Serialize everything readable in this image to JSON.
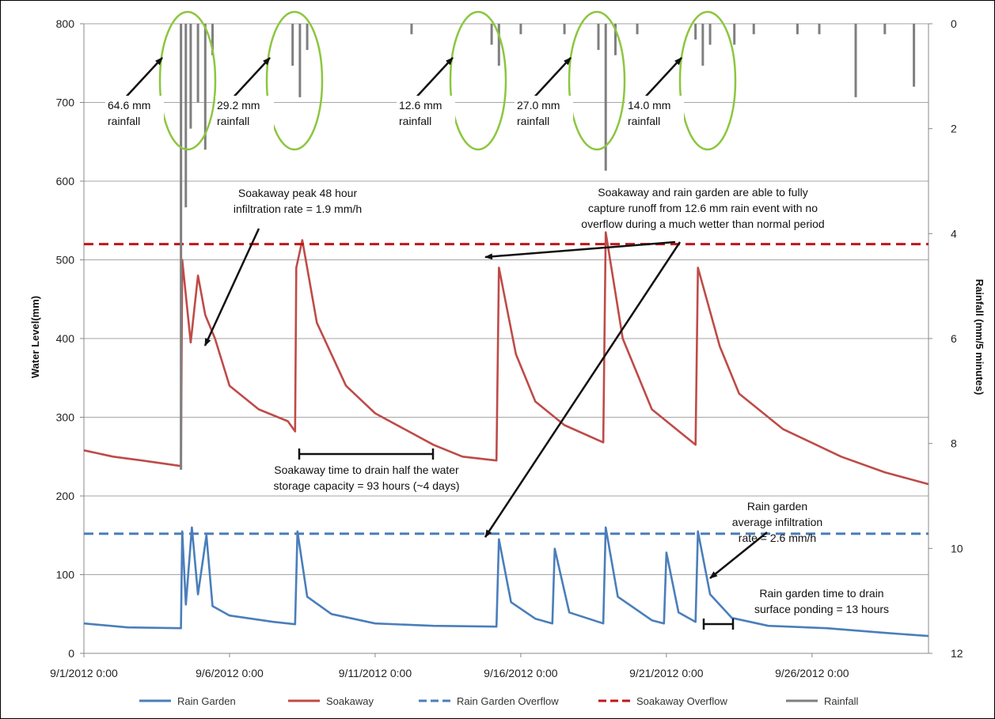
{
  "chart_data": {
    "type": "line",
    "ylabel": "Water Level(mm)",
    "y2label": "Rainfall  (mm/5 minutes)",
    "ylim": [
      0,
      800
    ],
    "y2lim": [
      12,
      0
    ],
    "xlim": [
      "2012-09-01",
      "2012-09-30"
    ],
    "yticks": [
      "0",
      "100",
      "200",
      "300",
      "400",
      "500",
      "600",
      "700",
      "800"
    ],
    "y2ticks": [
      "0",
      "2",
      "4",
      "6",
      "8",
      "10",
      "12"
    ],
    "xticks": [
      "9/1/2012 0:00",
      "9/6/2012 0:00",
      "9/11/2012 0:00",
      "9/16/2012 0:00",
      "9/21/2012 0:00",
      "9/26/2012 0:00"
    ],
    "grid": true,
    "legend_position": "bottom",
    "series": [
      {
        "name": "Rain Garden",
        "color": "#4a7ebb",
        "style": "solid",
        "points": [
          [
            "2012-09-01 00:00",
            38
          ],
          [
            "2012-09-02 12:00",
            33
          ],
          [
            "2012-09-04 08:00",
            32
          ],
          [
            "2012-09-04 09:00",
            155
          ],
          [
            "2012-09-04 12:00",
            62
          ],
          [
            "2012-09-04 17:00",
            160
          ],
          [
            "2012-09-04 22:00",
            75
          ],
          [
            "2012-09-05 05:00",
            150
          ],
          [
            "2012-09-05 10:00",
            60
          ],
          [
            "2012-09-06 00:00",
            48
          ],
          [
            "2012-09-07 12:00",
            40
          ],
          [
            "2012-09-08 06:00",
            37
          ],
          [
            "2012-09-08 08:00",
            155
          ],
          [
            "2012-09-08 16:00",
            72
          ],
          [
            "2012-09-09 12:00",
            50
          ],
          [
            "2012-09-11 00:00",
            38
          ],
          [
            "2012-09-13 00:00",
            35
          ],
          [
            "2012-09-15 04:00",
            34
          ],
          [
            "2012-09-15 06:00",
            145
          ],
          [
            "2012-09-15 16:00",
            65
          ],
          [
            "2012-09-16 12:00",
            44
          ],
          [
            "2012-09-17 02:00",
            38
          ],
          [
            "2012-09-17 04:00",
            133
          ],
          [
            "2012-09-17 16:00",
            52
          ],
          [
            "2012-09-18 20:00",
            38
          ],
          [
            "2012-09-18 22:00",
            160
          ],
          [
            "2012-09-19 08:00",
            72
          ],
          [
            "2012-09-20 12:00",
            42
          ],
          [
            "2012-09-20 22:00",
            38
          ],
          [
            "2012-09-21 00:00",
            128
          ],
          [
            "2012-09-21 10:00",
            52
          ],
          [
            "2012-09-22 00:00",
            40
          ],
          [
            "2012-09-22 02:00",
            155
          ],
          [
            "2012-09-22 12:00",
            75
          ],
          [
            "2012-09-23 06:00",
            45
          ],
          [
            "2012-09-24 12:00",
            35
          ],
          [
            "2012-09-26 12:00",
            32
          ],
          [
            "2012-09-28 12:00",
            26
          ],
          [
            "2012-09-30 00:00",
            22
          ]
        ]
      },
      {
        "name": "Soakaway",
        "color": "#be4b48",
        "style": "solid",
        "points": [
          [
            "2012-09-01 00:00",
            258
          ],
          [
            "2012-09-02 00:00",
            250
          ],
          [
            "2012-09-03 00:00",
            245
          ],
          [
            "2012-09-04 08:00",
            238
          ],
          [
            "2012-09-04 09:00",
            500
          ],
          [
            "2012-09-04 16:00",
            395
          ],
          [
            "2012-09-04 22:00",
            480
          ],
          [
            "2012-09-05 04:00",
            430
          ],
          [
            "2012-09-05 12:00",
            400
          ],
          [
            "2012-09-06 00:00",
            340
          ],
          [
            "2012-09-07 00:00",
            310
          ],
          [
            "2012-09-08 00:00",
            295
          ],
          [
            "2012-09-08 06:00",
            282
          ],
          [
            "2012-09-08 07:00",
            490
          ],
          [
            "2012-09-08 12:00",
            525
          ],
          [
            "2012-09-09 00:00",
            420
          ],
          [
            "2012-09-10 00:00",
            340
          ],
          [
            "2012-09-11 00:00",
            305
          ],
          [
            "2012-09-12 00:00",
            285
          ],
          [
            "2012-09-13 00:00",
            265
          ],
          [
            "2012-09-14 00:00",
            250
          ],
          [
            "2012-09-15 04:00",
            245
          ],
          [
            "2012-09-15 06:00",
            490
          ],
          [
            "2012-09-15 20:00",
            380
          ],
          [
            "2012-09-16 12:00",
            320
          ],
          [
            "2012-09-17 12:00",
            290
          ],
          [
            "2012-09-18 20:00",
            268
          ],
          [
            "2012-09-18 22:00",
            535
          ],
          [
            "2012-09-19 12:00",
            400
          ],
          [
            "2012-09-20 12:00",
            310
          ],
          [
            "2012-09-21 12:00",
            280
          ],
          [
            "2012-09-22 00:00",
            265
          ],
          [
            "2012-09-22 02:00",
            490
          ],
          [
            "2012-09-22 20:00",
            390
          ],
          [
            "2012-09-23 12:00",
            330
          ],
          [
            "2012-09-25 00:00",
            285
          ],
          [
            "2012-09-27 00:00",
            250
          ],
          [
            "2012-09-28 12:00",
            230
          ],
          [
            "2012-09-30 00:00",
            215
          ]
        ]
      },
      {
        "name": "Rain Garden Overflow",
        "color": "#4a7ebb",
        "style": "dashed",
        "points": [
          [
            "2012-09-01 00:00",
            152
          ],
          [
            "2012-09-30 00:00",
            152
          ]
        ]
      },
      {
        "name": "Soakaway Overflow",
        "color": "#c0161a",
        "style": "dashed",
        "points": [
          [
            "2012-09-01 00:00",
            520
          ],
          [
            "2012-09-30 00:00",
            520
          ]
        ]
      },
      {
        "name": "Rainfall",
        "color": "#7f7f7f",
        "style": "bars",
        "axis": "secondary",
        "points": [
          [
            "2012-09-04 08:00",
            8.5
          ],
          [
            "2012-09-04 12:00",
            3.5
          ],
          [
            "2012-09-04 16:00",
            2.0
          ],
          [
            "2012-09-04 22:00",
            1.5
          ],
          [
            "2012-09-05 04:00",
            2.4
          ],
          [
            "2012-09-05 10:00",
            0.6
          ],
          [
            "2012-09-08 04:00",
            0.8
          ],
          [
            "2012-09-08 10:00",
            1.4
          ],
          [
            "2012-09-08 16:00",
            0.5
          ],
          [
            "2012-09-12 06:00",
            0.2
          ],
          [
            "2012-09-15 00:00",
            0.4
          ],
          [
            "2012-09-15 06:00",
            0.8
          ],
          [
            "2012-09-16 00:00",
            0.2
          ],
          [
            "2012-09-17 12:00",
            0.2
          ],
          [
            "2012-09-18 16:00",
            0.5
          ],
          [
            "2012-09-18 22:00",
            2.8
          ],
          [
            "2012-09-19 06:00",
            0.6
          ],
          [
            "2012-09-20 00:00",
            0.2
          ],
          [
            "2012-09-22 00:00",
            0.3
          ],
          [
            "2012-09-22 06:00",
            0.8
          ],
          [
            "2012-09-22 12:00",
            0.4
          ],
          [
            "2012-09-23 08:00",
            0.4
          ],
          [
            "2012-09-24 00:00",
            0.2
          ],
          [
            "2012-09-25 12:00",
            0.2
          ],
          [
            "2012-09-26 06:00",
            0.2
          ],
          [
            "2012-09-27 12:00",
            1.4
          ],
          [
            "2012-09-28 12:00",
            0.2
          ],
          [
            "2012-09-29 12:00",
            1.2
          ]
        ]
      }
    ],
    "annotations": [
      {
        "id": "a1l1",
        "text": "64.6 mm"
      },
      {
        "id": "a1l2",
        "text": "rainfall"
      },
      {
        "id": "a2l1",
        "text": "29.2 mm"
      },
      {
        "id": "a2l2",
        "text": "rainfall"
      },
      {
        "id": "a3l1",
        "text": "12.6 mm"
      },
      {
        "id": "a3l2",
        "text": "rainfall"
      },
      {
        "id": "a4l1",
        "text": "27.0 mm"
      },
      {
        "id": "a4l2",
        "text": "rainfall"
      },
      {
        "id": "a5l1",
        "text": "14.0 mm"
      },
      {
        "id": "a5l2",
        "text": "rainfall"
      },
      {
        "id": "b1l1",
        "text": "Soakaway peak 48 hour"
      },
      {
        "id": "b1l2",
        "text": "infiltration rate = 1.9 mm/h"
      },
      {
        "id": "b2l1",
        "text": "Soakaway and rain garden are able to fully"
      },
      {
        "id": "b2l2",
        "text": "capture runoff from 12.6 mm rain event with no"
      },
      {
        "id": "b2l3",
        "text": "overflow during a much wetter than normal period"
      },
      {
        "id": "b3l1",
        "text": "Soakaway time to drain half the water"
      },
      {
        "id": "b3l2",
        "text": "storage capacity = 93 hours (~4 days)"
      },
      {
        "id": "b4l1",
        "text": "Rain garden"
      },
      {
        "id": "b4l2",
        "text": "average infiltration"
      },
      {
        "id": "b4l3",
        "text": "rate = 2.6 mm/h"
      },
      {
        "id": "b5l1",
        "text": "Rain garden time to drain"
      },
      {
        "id": "b5l2",
        "text": "surface ponding = 13 hours"
      }
    ]
  }
}
